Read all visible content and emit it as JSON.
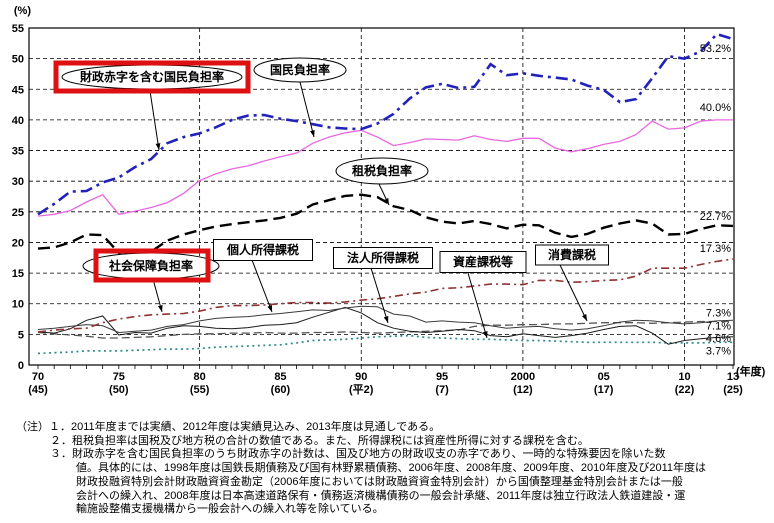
{
  "chart_data": {
    "type": "line",
    "y_unit": "(%)",
    "x_unit": "(年度)",
    "ylim": [
      0,
      55
    ],
    "y_tick_step": 5,
    "grid": true,
    "highlight_color": "#dd1111",
    "v_gridline_years": [
      1980,
      1990,
      2000,
      2010
    ],
    "x_ticks": [
      {
        "year": 1970,
        "label": "70",
        "label2": "(45)"
      },
      {
        "year": 1975,
        "label": "75",
        "label2": "(50)"
      },
      {
        "year": 1980,
        "label": "80",
        "label2": "(55)"
      },
      {
        "year": 1985,
        "label": "85",
        "label2": "(60)"
      },
      {
        "year": 1990,
        "label": "90",
        "label2": "(平2)"
      },
      {
        "year": 1995,
        "label": "95",
        "label2": "(7)"
      },
      {
        "year": 2000,
        "label": "2000",
        "label2": "(12)"
      },
      {
        "year": 2005,
        "label": "05",
        "label2": "(17)"
      },
      {
        "year": 2010,
        "label": "10",
        "label2": "(22)"
      },
      {
        "year": 2013,
        "label": "13",
        "label2": "(25)"
      }
    ],
    "years": [
      1970,
      1971,
      1972,
      1973,
      1974,
      1975,
      1976,
      1977,
      1978,
      1979,
      1980,
      1981,
      1982,
      1983,
      1984,
      1985,
      1986,
      1987,
      1988,
      1989,
      1990,
      1991,
      1992,
      1993,
      1994,
      1995,
      1996,
      1997,
      1998,
      1999,
      2000,
      2001,
      2002,
      2003,
      2004,
      2005,
      2006,
      2007,
      2008,
      2009,
      2010,
      2011,
      2012,
      2013
    ],
    "series": [
      {
        "id": "asset-tax",
        "label": "資産課税等",
        "color": "#2e8b8b",
        "style": "dotted",
        "end_label": "3.7%",
        "values": [
          1.9,
          2.0,
          2.1,
          2.3,
          2.3,
          2.3,
          2.4,
          2.5,
          2.6,
          2.6,
          2.7,
          2.9,
          3.0,
          3.1,
          3.2,
          3.3,
          3.6,
          4.0,
          4.1,
          4.2,
          4.4,
          4.6,
          4.7,
          4.8,
          4.5,
          4.4,
          4.3,
          4.2,
          4.2,
          4.1,
          4.0,
          4.0,
          3.9,
          3.8,
          3.7,
          3.7,
          3.7,
          3.7,
          3.7,
          3.6,
          3.6,
          3.6,
          3.7,
          3.7
        ]
      },
      {
        "id": "consumption-tax",
        "label": "消費課税",
        "color": "#555555",
        "style": "dashed",
        "end_label": "7.1%",
        "values": [
          5.3,
          5.1,
          4.9,
          4.7,
          4.4,
          4.4,
          4.5,
          4.6,
          4.8,
          5.0,
          5.1,
          5.1,
          5.2,
          5.2,
          5.3,
          5.2,
          5.2,
          5.3,
          5.3,
          5.4,
          5.3,
          5.2,
          5.3,
          5.4,
          5.5,
          5.6,
          5.7,
          6.3,
          6.5,
          6.5,
          6.6,
          6.6,
          6.7,
          6.7,
          6.8,
          6.9,
          6.9,
          6.9,
          6.8,
          6.9,
          7.0,
          7.1,
          7.1,
          7.1
        ]
      },
      {
        "id": "corporate-income-tax",
        "label": "法人所得課税",
        "color": "#1a1a1a",
        "style": "solid",
        "end_label": "4.6%",
        "values": [
          5.4,
          5.2,
          5.9,
          7.3,
          8.0,
          4.9,
          5.3,
          5.2,
          6.0,
          6.4,
          6.3,
          6.0,
          5.9,
          6.1,
          6.5,
          6.6,
          6.9,
          7.8,
          8.6,
          9.4,
          8.5,
          6.9,
          6.0,
          5.5,
          5.3,
          5.5,
          5.8,
          5.6,
          4.8,
          4.6,
          5.1,
          4.8,
          4.5,
          4.8,
          5.2,
          5.8,
          6.3,
          6.4,
          5.2,
          3.4,
          4.0,
          4.3,
          4.5,
          4.6
        ]
      },
      {
        "id": "personal-income-tax",
        "label": "個人所得課税",
        "color": "#3a3a3a",
        "style": "solid",
        "end_label": "7.3%",
        "values": [
          5.8,
          6.0,
          6.3,
          6.6,
          6.4,
          5.3,
          5.5,
          5.7,
          6.3,
          6.6,
          7.2,
          7.6,
          7.8,
          7.9,
          8.2,
          8.4,
          8.7,
          9.0,
          8.9,
          9.3,
          9.6,
          9.5,
          8.3,
          8.0,
          7.0,
          7.2,
          7.0,
          6.9,
          6.4,
          6.0,
          6.2,
          6.3,
          5.9,
          5.7,
          5.9,
          6.4,
          7.0,
          7.3,
          7.2,
          6.9,
          6.7,
          6.9,
          7.2,
          7.3
        ]
      },
      {
        "id": "social-security-burden",
        "label": "社会保障負担率",
        "color": "#913030",
        "style": "dash-dot",
        "end_label": "17.3%",
        "values": [
          5.4,
          5.7,
          5.9,
          6.0,
          6.9,
          7.5,
          7.9,
          8.2,
          8.3,
          8.4,
          8.8,
          9.4,
          9.7,
          9.7,
          9.8,
          10.0,
          10.2,
          10.2,
          10.1,
          10.3,
          10.6,
          10.8,
          11.2,
          11.6,
          11.9,
          12.5,
          12.6,
          12.9,
          13.2,
          13.2,
          13.1,
          13.8,
          13.8,
          13.5,
          13.6,
          13.8,
          13.9,
          14.5,
          15.8,
          15.8,
          15.8,
          16.4,
          16.9,
          17.3
        ]
      },
      {
        "id": "tax-burden",
        "label": "租税負担率",
        "color": "#000000",
        "style": "dashed",
        "end_label": "22.7%",
        "values": [
          19.0,
          19.2,
          20.0,
          21.3,
          21.2,
          18.3,
          18.6,
          18.5,
          20.3,
          21.3,
          22.0,
          22.6,
          23.0,
          23.3,
          23.6,
          24.0,
          24.7,
          26.2,
          26.9,
          27.6,
          27.8,
          27.4,
          25.9,
          25.3,
          24.1,
          23.4,
          23.1,
          23.5,
          23.0,
          22.3,
          22.9,
          22.8,
          21.6,
          20.9,
          21.4,
          22.4,
          23.1,
          23.6,
          23.1,
          21.3,
          21.4,
          22.2,
          22.8,
          22.7
        ]
      },
      {
        "id": "national-burden",
        "label": "国民負担率",
        "color": "#e868e0",
        "style": "solid",
        "end_label": "40.0%",
        "values": [
          24.3,
          24.6,
          25.2,
          26.6,
          27.8,
          24.6,
          25.1,
          25.7,
          26.5,
          28.0,
          30.1,
          31.2,
          32.0,
          32.5,
          33.3,
          34.0,
          34.6,
          36.2,
          37.2,
          37.9,
          38.3,
          37.2,
          35.8,
          36.3,
          36.9,
          36.8,
          36.7,
          37.4,
          36.8,
          36.5,
          37.0,
          37.0,
          35.4,
          34.8,
          35.3,
          36.0,
          36.5,
          37.6,
          39.8,
          38.5,
          38.7,
          39.8,
          40.0,
          40.0
        ]
      },
      {
        "id": "deficit-included-national-burden",
        "label": "財政赤字を含む国民負担率",
        "color": "#2222bb",
        "style": "dash-dot",
        "end_label": "53.2%",
        "values": [
          24.6,
          26.3,
          28.3,
          28.4,
          29.8,
          30.6,
          32.3,
          33.6,
          36.2,
          37.2,
          37.8,
          38.8,
          40.0,
          40.7,
          40.8,
          40.2,
          39.8,
          39.3,
          38.8,
          38.6,
          38.5,
          39.4,
          41.0,
          43.5,
          45.3,
          45.9,
          45.2,
          45.4,
          49.1,
          47.3,
          47.6,
          47.2,
          46.9,
          46.6,
          45.6,
          44.9,
          42.9,
          43.4,
          46.8,
          50.4,
          50.0,
          51.2,
          54.0,
          53.2
        ]
      }
    ],
    "callouts": [
      {
        "id": "deficit-included-national-burden",
        "label": "財政赤字を含む国民負担率",
        "shape": "ellipse",
        "highlighted": true
      },
      {
        "id": "national-burden",
        "label": "国民負担率",
        "shape": "ellipse",
        "highlighted": false
      },
      {
        "id": "tax-burden",
        "label": "租税負担率",
        "shape": "ellipse",
        "highlighted": false
      },
      {
        "id": "social-security-burden",
        "label": "社会保障負担率",
        "shape": "ellipse",
        "highlighted": true
      },
      {
        "id": "personal-income-tax",
        "label": "個人所得課税",
        "shape": "rect",
        "highlighted": false
      },
      {
        "id": "corporate-income-tax",
        "label": "法人所得課税",
        "shape": "rect",
        "highlighted": false
      },
      {
        "id": "asset-tax",
        "label": "資産課税等",
        "shape": "rect",
        "highlighted": false
      },
      {
        "id": "consumption-tax",
        "label": "消費課税",
        "shape": "rect",
        "highlighted": false
      }
    ]
  },
  "notes": [
    "（注）１．2011年度までは実績、2012年度は実績見込み、2013年度は見通しである。",
    "２．租税負担率は国税及び地方税の合計の数値である。また、所得課税には資産性所得に対する課税を含む。",
    "３．財政赤字を含む国民負担率のうち財政赤字の計数は、国及び地方の財政収支の赤字であり、一時的な特殊要因を除いた数",
    "値。具体的には、1998年度は国鉄長期債務及び国有林野累積債務、2006年度、2008年度、2009年度、2010年度及び2011年度は",
    "財政投融資特別会計財政融資資金勘定（2006年度においては財政融資資金特別会計）から国債整理基金特別会計または一般",
    "会計への繰入れ、2008年度は日本高速道路保有・債務返済機構債務の一般会計承継、2011年度は独立行政法人鉄道建設・運",
    "輸施設整備支援機構から一般会計への繰入れ等を除いている。"
  ]
}
